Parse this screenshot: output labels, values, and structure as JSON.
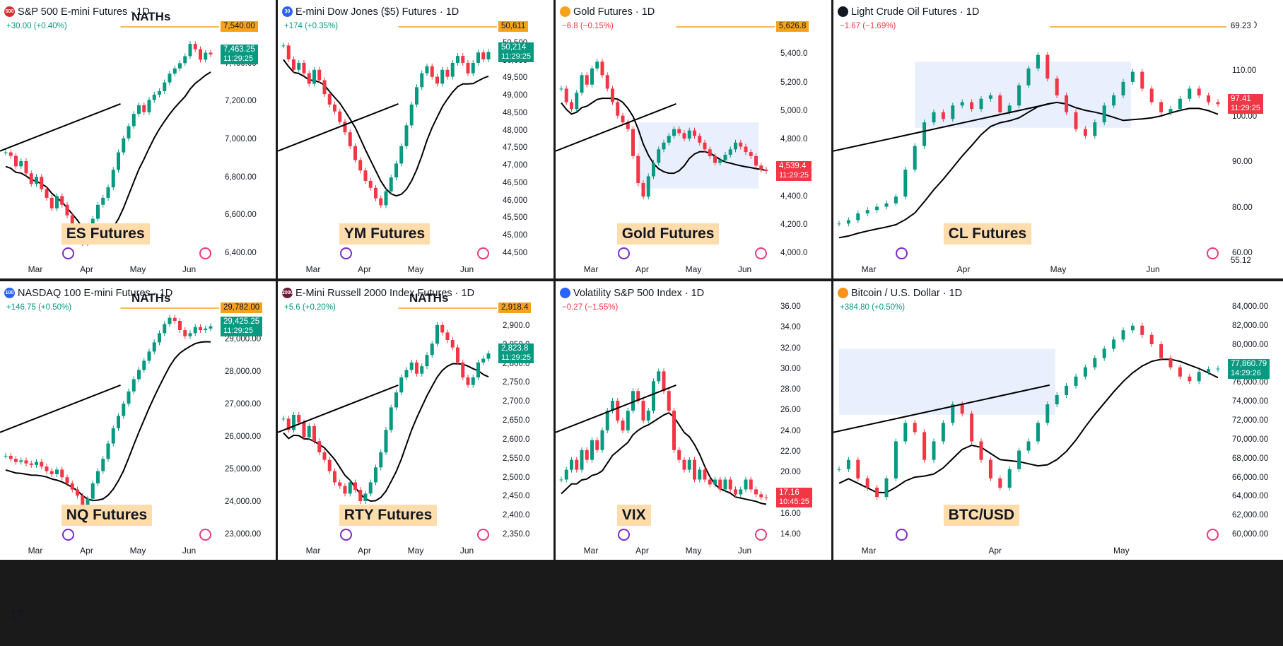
{
  "colors": {
    "up": "#089981",
    "down": "#f23645",
    "accent": "#f7a21b",
    "band": "#e9effd",
    "label_bg": "#ffdcab"
  },
  "branding": {
    "logo": "17"
  },
  "panels": [
    {
      "id": "es",
      "title": "S&P 500 E-mini Futures · 1D",
      "badge": "500",
      "badge_color": "#d32f2f",
      "change": "+30.00 (+0.40%)",
      "change_dir": "up",
      "label": "ES Futures",
      "extra": "NATHs",
      "months": [
        "Mar",
        "Apr",
        "May",
        "Jun"
      ],
      "ticks": [
        "7,600.00",
        "7,400.00",
        "7,200.00",
        "7,000.00",
        "6,800.00",
        "6,600.00",
        "6,400.00"
      ],
      "level": "7,540.00",
      "price": "7,463.25",
      "countdown": "11:29:25",
      "price_dir": "up",
      "ymin": 6300,
      "ymax": 7650,
      "points": [
        6900,
        6880,
        6820,
        6850,
        6780,
        6720,
        6760,
        6690,
        6640,
        6580,
        6650,
        6600,
        6540,
        6470,
        6410,
        6380,
        6450,
        6520,
        6600,
        6640,
        6700,
        6800,
        6900,
        6980,
        7050,
        7120,
        7170,
        7130,
        7200,
        7230,
        7250,
        7300,
        7350,
        7380,
        7410,
        7450,
        7520,
        7490,
        7430,
        7470,
        7460
      ]
    },
    {
      "id": "ym",
      "title": "E-mini Dow Jones ($5) Futures · 1D",
      "badge": "30",
      "badge_color": "#2962ff",
      "change": "+174 (+0.35%)",
      "change_dir": "up",
      "label": "YM Futures",
      "extra": "",
      "months": [
        "Mar",
        "Apr",
        "May",
        "Jun"
      ],
      "ticks": [
        "51,000",
        "50,500",
        "50,000",
        "49,500",
        "49,000",
        "48,500",
        "48,000",
        "47,500",
        "47,000",
        "46,500",
        "46,000",
        "45,500",
        "45,000",
        "44,500"
      ],
      "level": "50,611",
      "price": "50,214",
      "countdown": "11:29:25",
      "price_dir": "up",
      "ymin": 44300,
      "ymax": 51100,
      "points": [
        50400,
        50000,
        49700,
        49900,
        49600,
        49300,
        49700,
        49400,
        49000,
        48700,
        48500,
        48200,
        47900,
        47500,
        47100,
        46800,
        46500,
        46300,
        46000,
        45800,
        46200,
        46600,
        47000,
        47500,
        48100,
        48700,
        49200,
        49600,
        49800,
        49500,
        49300,
        49700,
        49500,
        49900,
        50100,
        49900,
        49600,
        49900,
        50200,
        50000,
        50210
      ]
    },
    {
      "id": "gc",
      "title": "Gold Futures · 1D",
      "badge": "",
      "badge_color": "#f7a21b",
      "change": "−6.8 (−0.15%)",
      "change_dir": "dn",
      "label": "Gold Futures",
      "extra": "",
      "months": [
        "Mar",
        "Apr",
        "May",
        "Jun"
      ],
      "ticks": [
        "5,600.0",
        "5,400.0",
        "5,200.0",
        "5,000.0",
        "4,800.0",
        "4,600.0",
        "4,400.0",
        "4,200.0",
        "4,000.0"
      ],
      "level": "5,626.8",
      "price": "4,539.4",
      "countdown": "11:29:25",
      "price_dir": "dn",
      "ymin": 3900,
      "ymax": 5650,
      "points": [
        5150,
        5050,
        5000,
        5120,
        5250,
        5180,
        5300,
        5350,
        5250,
        5150,
        5050,
        4950,
        4900,
        4850,
        4650,
        4450,
        4350,
        4500,
        4600,
        4700,
        4750,
        4800,
        4850,
        4820,
        4780,
        4840,
        4800,
        4750,
        4700,
        4650,
        4600,
        4620,
        4660,
        4700,
        4750,
        4720,
        4680,
        4650,
        4580,
        4550,
        4540
      ]
    },
    {
      "id": "cl",
      "title": "Light Crude Oil Futures · 1D",
      "badge": "",
      "badge_color": "#131722",
      "change": "−1.67 (−1.69%)",
      "change_dir": "dn",
      "label": "CL Futures",
      "extra": "",
      "months": [
        "Mar",
        "Apr",
        "May",
        "Jun"
      ],
      "ticks": [
        "120.00",
        "110.00",
        "100.00",
        "90.00",
        "80.00",
        "60.00"
      ],
      "level": "69.23",
      "level2": "55.12",
      "price": "97.41",
      "countdown": "11:29:25",
      "price_dir": "dn",
      "ymin": 52,
      "ymax": 122,
      "points": [
        62,
        63,
        65,
        66,
        67,
        68,
        70,
        78,
        85,
        92,
        95,
        93,
        97,
        98,
        96,
        99,
        100,
        95,
        97,
        103,
        108,
        112,
        105,
        100,
        95,
        90,
        88,
        92,
        97,
        100,
        104,
        107,
        102,
        98,
        95,
        96,
        99,
        102,
        100,
        98,
        97.4
      ]
    },
    {
      "id": "nq",
      "title": "NASDAQ 100 E-mini Futures · 1D",
      "badge": "100",
      "badge_color": "#2962ff",
      "change": "+146.75 (+0.50%)",
      "change_dir": "up",
      "label": "NQ Futures",
      "extra": "NATHs",
      "months": [
        "Mar",
        "Apr",
        "May",
        "Jun"
      ],
      "ticks": [
        "30,000.00",
        "29,000.00",
        "28,000.00",
        "27,000.00",
        "26,000.00",
        "25,000.00",
        "24,000.00",
        "23,000.00"
      ],
      "level": "29,782.00",
      "price": "29,425.25",
      "countdown": "11:29:25",
      "price_dir": "up",
      "ymin": 22500,
      "ymax": 30200,
      "points": [
        25200,
        25100,
        25000,
        25050,
        24950,
        24900,
        25000,
        24850,
        24700,
        24600,
        24750,
        24500,
        24300,
        24100,
        23900,
        23600,
        23800,
        24300,
        24700,
        25100,
        25600,
        26100,
        26500,
        26900,
        27300,
        27700,
        28000,
        28300,
        28600,
        28900,
        29200,
        29500,
        29700,
        29600,
        29300,
        29100,
        29200,
        29400,
        29300,
        29350,
        29425
      ]
    },
    {
      "id": "rty",
      "title": "E-Mini Russell 2000 Index Futures · 1D",
      "badge": "2000",
      "badge_color": "#6d1a36",
      "change": "+5.6 (+0.20%)",
      "change_dir": "up",
      "label": "RTY Futures",
      "extra": "NATHs",
      "months": [
        "Mar",
        "Apr",
        "May",
        "Jun"
      ],
      "ticks": [
        "2,950.0",
        "2,900.0",
        "2,850.0",
        "2,800.0",
        "2,750.0",
        "2,700.0",
        "2,650.0",
        "2,600.0",
        "2,550.0",
        "2,500.0",
        "2,450.0",
        "2,400.0",
        "2,350.0"
      ],
      "level": "2,918.4",
      "price": "2,823.8",
      "countdown": "11:29:25",
      "price_dir": "up",
      "ymin": 2330,
      "ymax": 2960,
      "points": [
        2650,
        2620,
        2660,
        2640,
        2600,
        2630,
        2590,
        2560,
        2540,
        2510,
        2480,
        2470,
        2450,
        2480,
        2460,
        2430,
        2450,
        2480,
        2520,
        2560,
        2620,
        2680,
        2720,
        2760,
        2780,
        2800,
        2770,
        2790,
        2820,
        2850,
        2900,
        2880,
        2860,
        2840,
        2800,
        2760,
        2740,
        2760,
        2800,
        2810,
        2824
      ]
    },
    {
      "id": "vix",
      "title": "Volatility S&P 500 Index · 1D",
      "badge": "",
      "badge_color": "#2962ff",
      "change": "−0.27 (−1.55%)",
      "change_dir": "dn",
      "label": "VIX",
      "extra": "",
      "months": [
        "Mar",
        "Apr",
        "May",
        "Jun"
      ],
      "ticks": [
        "36.00",
        "34.00",
        "32.00",
        "30.00",
        "28.00",
        "26.00",
        "24.00",
        "22.00",
        "20.00",
        "18.00",
        "16.00",
        "14.00"
      ],
      "level": "",
      "price": "17.16",
      "countdown": "10:45:25",
      "price_dir": "dn",
      "ymin": 13,
      "ymax": 37,
      "points": [
        19,
        20,
        21,
        20,
        22,
        21,
        23,
        22,
        24,
        26,
        27,
        25,
        24,
        26,
        28,
        27,
        25,
        26,
        29,
        30,
        28,
        26,
        22,
        21,
        20,
        21,
        19,
        20,
        19,
        18.5,
        19,
        18,
        19,
        18,
        17.5,
        18,
        19,
        18,
        17.5,
        17.2,
        17.16
      ]
    },
    {
      "id": "btc",
      "title": "Bitcoin / U.S. Dollar · 1D",
      "badge": "",
      "badge_color": "#f7931a",
      "change": "+384.80 (+0.50%)",
      "change_dir": "up",
      "label": "BTC/USD",
      "extra": "",
      "months": [
        "Mar",
        "Apr",
        "May"
      ],
      "ticks": [
        "84,000.00",
        "82,000.00",
        "80,000.00",
        "78,000.00",
        "76,000.00",
        "74,000.00",
        "72,000.00",
        "70,000.00",
        "68,000.00",
        "66,000.00",
        "64,000.00",
        "62,000.00",
        "60,000.00"
      ],
      "level": "",
      "price": "77,860.79",
      "countdown": "14:29:26",
      "price_dir": "up",
      "ymin": 59500,
      "ymax": 85000,
      "points": [
        67000,
        68000,
        66000,
        65000,
        64000,
        66000,
        70000,
        72000,
        71000,
        68000,
        70000,
        72000,
        74000,
        73000,
        70000,
        68000,
        66000,
        65000,
        67000,
        69000,
        70000,
        72000,
        74000,
        75000,
        76000,
        77000,
        78000,
        79000,
        80000,
        81000,
        82000,
        82500,
        81500,
        80500,
        79000,
        78000,
        77000,
        76500,
        77500,
        77800,
        77860
      ]
    }
  ]
}
